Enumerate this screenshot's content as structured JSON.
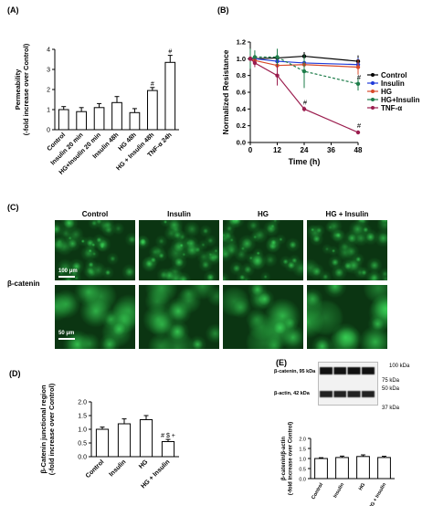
{
  "panels": {
    "a": "(A)",
    "b": "(B)",
    "c": "(C)",
    "d": "(D)",
    "e": "(E)"
  },
  "chart_data": [
    {
      "panel": "A",
      "type": "bar",
      "ylabel": "Permeability (-fold increase over Control)",
      "ylabel_lines": [
        "Permeability",
        "(-fold increase over Control)"
      ],
      "categories": [
        "Control",
        "Insulin 20 min",
        "HG+Insulin 20 min",
        "Insulin 48h",
        "HG 48h",
        "HG + Insulin 48h",
        "TNF-α 24h"
      ],
      "values": [
        1.0,
        0.9,
        1.1,
        1.35,
        0.85,
        1.95,
        3.35
      ],
      "errors": [
        0.15,
        0.2,
        0.2,
        0.3,
        0.2,
        0.15,
        0.35
      ],
      "annotations": [
        "",
        "",
        "",
        "",
        "",
        "#",
        "#"
      ],
      "ylim": [
        0,
        4
      ],
      "yticks": [
        0,
        1,
        2,
        3,
        4
      ]
    },
    {
      "panel": "B",
      "type": "line",
      "ylabel": "Normalized Resistance",
      "xlabel": "Time (h)",
      "x": [
        0,
        2,
        12,
        24,
        48
      ],
      "xticks": [
        0,
        12,
        24,
        36,
        48
      ],
      "yticks": [
        "0.0",
        "0.2",
        "0.4",
        "0.6",
        "0.8",
        "1.0",
        "1.2"
      ],
      "ylim": [
        0,
        1.2
      ],
      "xlim": [
        0,
        48
      ],
      "series": [
        {
          "name": "Control",
          "color": "#000000",
          "values": [
            1.0,
            1.0,
            1.01,
            1.03,
            0.97
          ],
          "errors": [
            0.03,
            0.03,
            0.04,
            0.05,
            0.07
          ]
        },
        {
          "name": "Insulin",
          "color": "#1f3ad8",
          "values": [
            1.0,
            1.0,
            0.97,
            0.95,
            0.93
          ],
          "errors": [
            0.03,
            0.03,
            0.05,
            0.06,
            0.08
          ]
        },
        {
          "name": "HG",
          "color": "#d84a2a",
          "values": [
            1.0,
            0.98,
            0.92,
            0.93,
            0.9
          ],
          "errors": [
            0.04,
            0.05,
            0.08,
            0.07,
            0.09
          ]
        },
        {
          "name": "HG+Insulin",
          "color": "#1e7d4a",
          "values": [
            1.0,
            1.02,
            1.02,
            0.85,
            0.7
          ],
          "errors": [
            0.12,
            0.08,
            0.1,
            0.2,
            0.08
          ]
        },
        {
          "name": "TNF-α",
          "color": "#9b1d4e",
          "values": [
            1.0,
            0.95,
            0.8,
            0.4,
            0.12
          ],
          "errors": [
            0.03,
            0.05,
            0.12,
            0.03,
            0.02
          ]
        }
      ],
      "annotations": [
        {
          "x": 24,
          "text": "#"
        },
        {
          "x": 48,
          "text": "#"
        },
        {
          "x": 48,
          "text": "#"
        }
      ]
    },
    {
      "panel": "D",
      "type": "bar",
      "ylabel": "β-Catenin junctional region (-fold increase over Control)",
      "ylabel_lines": [
        "β-Catenin junctional region",
        "(-fold increase over Control)"
      ],
      "categories": [
        "Control",
        "Insulin",
        "HG",
        "HG + Insulin"
      ],
      "values": [
        1.0,
        1.2,
        1.35,
        0.55
      ],
      "errors": [
        0.08,
        0.18,
        0.15,
        0.08
      ],
      "annotations": [
        "",
        "",
        "",
        "# $ +"
      ],
      "ylim": [
        0,
        2.0
      ],
      "yticks": [
        "0.0",
        "0.5",
        "1.0",
        "1.5",
        "2.0"
      ]
    },
    {
      "panel": "E",
      "type": "bar",
      "ylabel": "β-catenin/β-actin (-fold increase over Control)",
      "ylabel_lines": [
        "β-catenin/β-actin",
        "(-fold increase over Control)"
      ],
      "categories": [
        "Control",
        "Insulin",
        "HG",
        "HG + Insulin"
      ],
      "values": [
        1.0,
        1.05,
        1.1,
        1.05
      ],
      "errors": [
        0.04,
        0.07,
        0.08,
        0.06
      ],
      "ylim": [
        0,
        2.0
      ],
      "yticks": [
        "0.0",
        "0.5",
        "1.0",
        "1.5",
        "2.0"
      ]
    }
  ],
  "micrographs": {
    "columns": [
      "Control",
      "Insulin",
      "HG",
      "HG + Insulin"
    ],
    "row_label": "β-catenin",
    "scale_top": "100 μm",
    "scale_bottom": "50 μm"
  },
  "western_blot": {
    "bands": [
      "β-catenin, 95 kDa",
      "β-actin, 42 kDa"
    ],
    "markers": [
      "100 kDa",
      "75 kDa",
      "50 kDa",
      "37 kDa"
    ]
  }
}
